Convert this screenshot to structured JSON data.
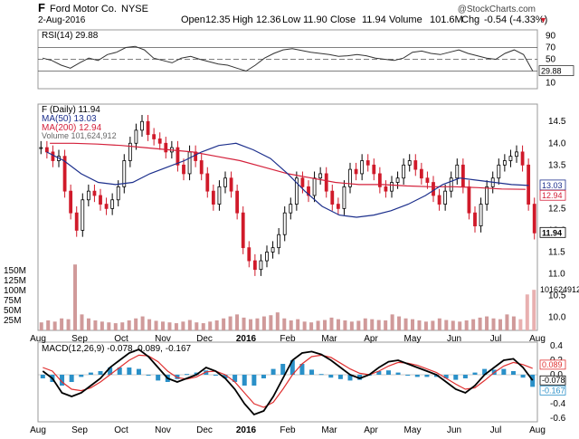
{
  "header": {
    "symbol": "F",
    "company": "Ford Motor Co.",
    "exchange": "NYSE",
    "date": "2-Aug-2016",
    "watermark": "@StockCharts.com",
    "open_label": "Open",
    "open": "12.35",
    "high_label": "High",
    "high": "12.36",
    "low_label": "Low",
    "low": "11.90",
    "close_label": "Close",
    "close": "11.94",
    "volume_label": "Volume",
    "volume": "101.6M",
    "chg_label": "Chg",
    "chg": "-0.54 (-4.33%)",
    "chg_arrow": "▼"
  },
  "colors": {
    "up": "#000000",
    "down": "#d01a2a",
    "ma50": "#1c2f8c",
    "ma200": "#d4213b",
    "volume": "#d09a9a",
    "macd": "#000000",
    "signal": "#e03030",
    "hist": "#2a90c8"
  },
  "chart_data": [
    {
      "type": "line",
      "title": "RSI(14) 29.88",
      "x_labels": [
        "Aug",
        "Sep",
        "Oct",
        "Nov",
        "Dec",
        "2016",
        "Feb",
        "Mar",
        "Apr",
        "May",
        "Jun",
        "Jul",
        "Aug"
      ],
      "y_ticks": [
        90,
        70,
        50,
        30,
        10
      ],
      "ylim": [
        0,
        100
      ],
      "reference_lines": [
        70,
        50,
        30
      ],
      "last_value": "29.88",
      "series": [
        {
          "name": "RSI(14)",
          "values": [
            52,
            48,
            40,
            35,
            44,
            52,
            48,
            58,
            62,
            70,
            72,
            66,
            52,
            48,
            44,
            52,
            55,
            50,
            46,
            42,
            40,
            35,
            30,
            40,
            52,
            60,
            66,
            68,
            65,
            62,
            60,
            58,
            55,
            56,
            58,
            56,
            52,
            50,
            48,
            52,
            62,
            64,
            60,
            58,
            62,
            66,
            60,
            56,
            52,
            50,
            60,
            66,
            58,
            30
          ]
        }
      ]
    },
    {
      "type": "candlestick",
      "x_labels": [
        "Aug",
        "Sep",
        "Oct",
        "Nov",
        "Dec",
        "2016",
        "Feb",
        "Mar",
        "Apr",
        "May",
        "Jun",
        "Jul",
        "Aug"
      ],
      "y_ticks": [
        14.5,
        14.0,
        13.5,
        13.0,
        12.5,
        12.0,
        11.5,
        11.0,
        10.5,
        10.0
      ],
      "ylim": [
        9.7,
        14.9
      ],
      "legend": [
        {
          "label": "F (Daily) 11.94"
        },
        {
          "label": "MA(50) 13.03"
        },
        {
          "label": "MA(200) 12.94"
        },
        {
          "label": "Volume 101,624,912"
        }
      ],
      "price_tags": {
        "ma50": "13.03",
        "ma200": "12.94",
        "close": "11.94"
      },
      "series": [
        {
          "name": "F (Daily)",
          "close": [
            13.9,
            13.8,
            13.6,
            13.7,
            12.9,
            12.4,
            12.0,
            12.7,
            12.9,
            12.8,
            12.6,
            12.5,
            12.7,
            13.0,
            13.6,
            14.0,
            14.3,
            14.5,
            14.2,
            14.1,
            14.0,
            13.8,
            13.9,
            13.5,
            13.3,
            13.8,
            13.6,
            13.3,
            12.9,
            12.6,
            13.0,
            13.2,
            12.9,
            12.4,
            11.6,
            11.3,
            11.1,
            11.3,
            11.5,
            11.6,
            11.9,
            12.4,
            12.6,
            13.2,
            13.0,
            12.8,
            13.2,
            13.3,
            12.9,
            12.6,
            12.5,
            13.0,
            13.4,
            13.3,
            13.6,
            13.5,
            13.3,
            13.0,
            12.9,
            13.1,
            13.2,
            13.5,
            13.6,
            13.4,
            13.2,
            13.1,
            12.8,
            12.6,
            12.9,
            13.2,
            13.5,
            13.0,
            12.4,
            12.1,
            12.6,
            13.0,
            13.2,
            13.5,
            13.6,
            13.7,
            13.8,
            13.5,
            12.6,
            11.94
          ]
        },
        {
          "name": "MA(50)",
          "values": [
            13.8,
            13.6,
            13.3,
            13.1,
            13.05,
            13.1,
            13.3,
            13.45,
            13.6,
            13.8,
            13.95,
            14.0,
            13.85,
            13.65,
            13.3,
            12.9,
            12.55,
            12.35,
            12.3,
            12.35,
            12.45,
            12.6,
            12.8,
            13.05,
            13.2,
            13.15,
            13.1,
            13.05,
            13.03
          ]
        },
        {
          "name": "MA(200)",
          "values": [
            14.0,
            14.0,
            13.98,
            13.95,
            13.9,
            13.85,
            13.8,
            13.7,
            13.6,
            13.45,
            13.3,
            13.2,
            13.1,
            13.05,
            13.05,
            13.02,
            13.0,
            13.0,
            12.98,
            12.95,
            12.94
          ]
        }
      ]
    },
    {
      "type": "bar",
      "title": "Volume",
      "y_ticks": [
        "150M",
        "125M",
        "100M",
        "75M",
        "50M",
        "25M"
      ],
      "ylim": [
        0,
        170
      ],
      "last_value": "101624912",
      "series": [
        {
          "name": "Volume",
          "values": [
            20,
            25,
            22,
            30,
            28,
            165,
            40,
            30,
            25,
            22,
            20,
            18,
            20,
            25,
            30,
            35,
            28,
            24,
            22,
            20,
            18,
            22,
            26,
            20,
            18,
            22,
            25,
            30,
            35,
            40,
            32,
            28,
            30,
            35,
            38,
            45,
            30,
            25,
            28,
            22,
            20,
            24,
            26,
            32,
            28,
            25,
            22,
            24,
            30,
            28,
            26,
            25,
            40,
            35,
            30,
            28,
            25,
            22,
            24,
            30,
            26,
            24,
            22,
            25,
            28,
            32,
            35,
            30,
            28,
            40,
            35,
            28,
            90,
            101.6
          ]
        }
      ]
    },
    {
      "type": "line",
      "title": "MACD(12,26,9) -0.078, 0.089, -0.167",
      "x_labels": [
        "Aug",
        "Sep",
        "Oct",
        "Nov",
        "Dec",
        "2016",
        "Feb",
        "Mar",
        "Apr",
        "May",
        "Jun",
        "Jul",
        "Aug"
      ],
      "y_ticks": [
        0.4,
        0.2,
        0.0,
        -0.2,
        -0.4,
        -0.6
      ],
      "ylim": [
        -0.65,
        0.45
      ],
      "last_values": {
        "macd": "-0.078",
        "signal": "0.089",
        "histogram": "-0.167"
      },
      "series": [
        {
          "name": "MACD",
          "values": [
            0.05,
            -0.05,
            -0.25,
            -0.3,
            -0.25,
            -0.15,
            -0.05,
            0.1,
            0.2,
            0.3,
            0.35,
            0.25,
            0.1,
            -0.05,
            -0.1,
            -0.05,
            0.0,
            0.1,
            0.05,
            -0.05,
            -0.2,
            -0.4,
            -0.55,
            -0.5,
            -0.3,
            -0.05,
            0.2,
            0.3,
            0.32,
            0.28,
            0.2,
            0.1,
            0.0,
            -0.05,
            0.0,
            0.1,
            0.18,
            0.2,
            0.15,
            0.1,
            0.05,
            0.0,
            -0.1,
            -0.2,
            -0.25,
            -0.15,
            0.0,
            0.1,
            0.2,
            0.22,
            0.1,
            -0.078
          ]
        },
        {
          "name": "Signal",
          "values": [
            0.1,
            0.05,
            -0.1,
            -0.2,
            -0.22,
            -0.18,
            -0.1,
            0.0,
            0.1,
            0.2,
            0.27,
            0.26,
            0.18,
            0.05,
            -0.04,
            -0.06,
            -0.03,
            0.04,
            0.05,
            0.0,
            -0.1,
            -0.25,
            -0.4,
            -0.45,
            -0.38,
            -0.2,
            0.0,
            0.15,
            0.25,
            0.27,
            0.24,
            0.16,
            0.08,
            0.02,
            0.0,
            0.05,
            0.12,
            0.17,
            0.16,
            0.13,
            0.08,
            0.03,
            -0.05,
            -0.13,
            -0.2,
            -0.18,
            -0.08,
            0.03,
            0.12,
            0.17,
            0.14,
            0.089
          ]
        }
      ]
    }
  ]
}
